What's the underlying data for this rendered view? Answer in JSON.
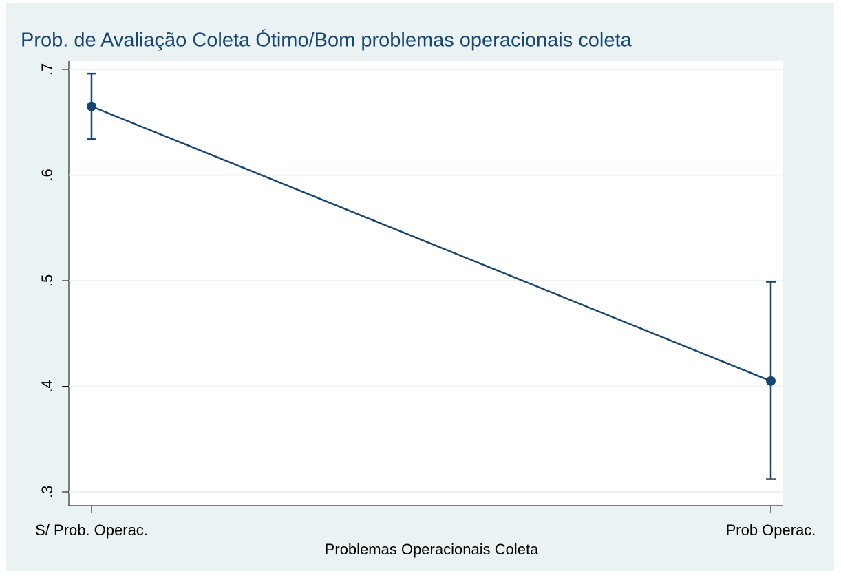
{
  "chart_data": {
    "type": "line",
    "title": "Prob. de Avaliação Coleta Ótimo/Bom  problemas operacionais coleta",
    "x_label": "Problemas Operacionais Coleta",
    "categories": [
      "S/ Prob. Operac.",
      "Prob Operac."
    ],
    "series": [
      {
        "color": "#1a476f",
        "values": [
          0.665,
          0.405
        ],
        "ci_lower": [
          0.634,
          0.312
        ],
        "ci_upper": [
          0.696,
          0.499
        ]
      }
    ],
    "ylim": [
      0.3,
      0.7
    ],
    "yticks": [
      {
        "value": 0.3,
        "label": ".3"
      },
      {
        "value": 0.4,
        "label": ".4"
      },
      {
        "value": 0.5,
        "label": ".5"
      },
      {
        "value": 0.6,
        "label": ".6"
      },
      {
        "value": 0.7,
        "label": ".7"
      }
    ],
    "grid": true
  }
}
